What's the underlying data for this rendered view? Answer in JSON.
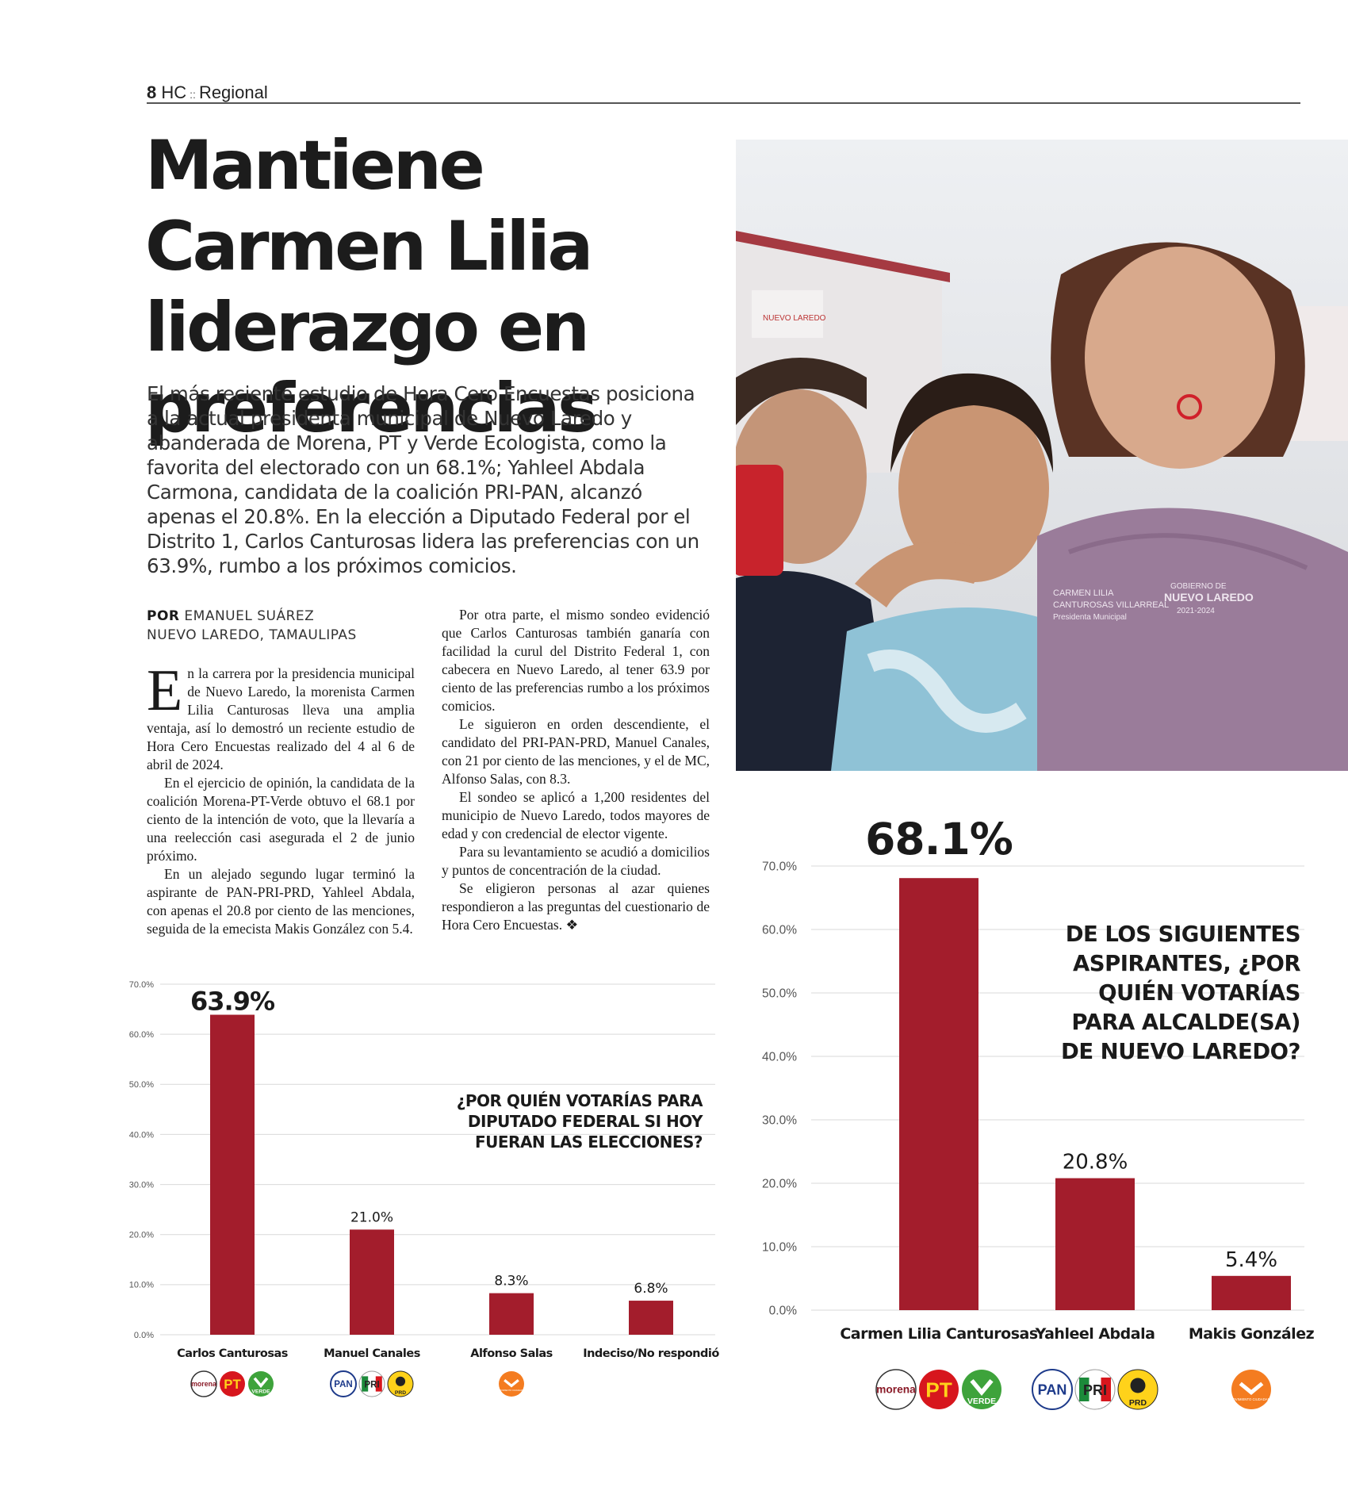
{
  "header": {
    "page_number": "8",
    "publication": "HC",
    "separator": "::",
    "section": "Regional"
  },
  "article": {
    "headline": "Mantiene Carmen Lilia liderazgo en preferencias",
    "deck": "El más reciente estudio de Hora Cero Encuestas posiciona a la actual presidenta municipal de Nuevo Laredo y abanderada de Morena, PT y Verde Ecologista, como la favorita del electorado con un 68.1%; Yahleel Abdala Carmona, candidata de la coalición PRI-PAN, alcanzó apenas el 20.8%. En la elección a Diputado Federal por el Distrito 1, Carlos Canturosas lidera las preferencias con un 63.9%, rumbo a los próximos comicios.",
    "byline_prefix": "POR",
    "author": "EMANUEL SUÁREZ",
    "location": "NUEVO LAREDO, TAMAULIPAS",
    "dropcap": "E",
    "paragraphs_col1": [
      "n la carrera por la presidencia municipal de Nuevo Laredo, la morenista Carmen Lilia Canturosas lleva una amplia ventaja, así lo demostró un reciente estudio de Hora Cero Encuestas realizado del 4 al 6 de abril de 2024.",
      "En el ejercicio de opinión, la candidata de la coalición Morena-PT-Verde obtuvo el 68.1 por ciento de la intención de voto, que la llevaría a una reelección casi asegurada el 2 de junio próximo.",
      "En un alejado segundo lugar terminó la aspirante de PAN-PRI-PRD, Yahleel Abdala, con apenas el 20.8 por ciento de las menciones, seguida de la emecista Makis González con 5.4."
    ],
    "paragraphs_col2": [
      "Por otra parte, el mismo sondeo evidenció que Carlos Canturosas también ganaría con facilidad la curul del Distrito Federal 1, con cabecera en Nuevo Laredo, al tener 63.9 por ciento de las preferencias rumbo a los próximos comicios.",
      "Le siguieron en orden descendiente, el candidato del PRI-PAN-PRD, Manuel Canales, con 21 por ciento de las menciones, y el de MC, Alfonso Salas, con 8.3.",
      "El sondeo se aplicó a 1,200 residentes del municipio de Nuevo Laredo, todos mayores de edad y con credencial de elector vigente.",
      "Para su levantamiento se acudió a domicilios y puntos de concentración de la ciudad.",
      "Se eligieron personas al azar quienes respondieron a las preguntas del cuestionario de Hora Cero Encuestas. ❖"
    ]
  },
  "photo": {
    "shirt_text_1": "CARMEN LILIA",
    "shirt_text_2": "CANTUROSAS VILLARREAL",
    "shirt_text_3": "Presidenta Municipal",
    "shirt_logo_1": "GOBIERNO DE",
    "shirt_logo_2": "NUEVO LAREDO",
    "shirt_logo_3": "2021-2024",
    "bg_sign": "NUEVO LAREDO"
  },
  "colors": {
    "bar": "#a31d2c",
    "grid": "#d9d9d9",
    "axis_text": "#555555"
  },
  "party_logos": {
    "morena": "morena",
    "pt": "PT",
    "verde": "VERDE",
    "pan": "PAN",
    "pri": "PRI",
    "prd": "PRD",
    "mc": "MOVIMIENTO CIUDADANO"
  },
  "chart_data": [
    {
      "type": "bar",
      "title": "¿POR QUIÉN VOTARÍAS PARA DIPUTADO FEDERAL SI HOY FUERAN LAS ELECCIONES?",
      "categories": [
        "Carlos Canturosas",
        "Manuel Canales",
        "Alfonso Salas",
        "Indeciso/No respondió"
      ],
      "values": [
        63.9,
        21.0,
        8.3,
        6.8
      ],
      "value_labels": [
        "63.9%",
        "21.0%",
        "8.3%",
        "6.8%"
      ],
      "ylim": [
        0,
        70
      ],
      "yticks": [
        "0.0%",
        "10.0%",
        "20.0%",
        "30.0%",
        "40.0%",
        "50.0%",
        "60.0%",
        "70.0%"
      ],
      "grid": true,
      "logos": [
        [
          "morena",
          "pt",
          "verde"
        ],
        [
          "pan",
          "pri",
          "prd"
        ],
        [
          "mc"
        ],
        []
      ]
    },
    {
      "type": "bar",
      "title": "DE LOS SIGUIENTES ASPIRANTES, ¿POR QUIÉN VOTARÍAS PARA ALCALDE(SA) DE NUEVO LAREDO?",
      "categories": [
        "Carmen Lilia Canturosas",
        "Yahleel Abdala",
        "Makis González"
      ],
      "values": [
        68.1,
        20.8,
        5.4
      ],
      "value_labels": [
        "68.1%",
        "20.8%",
        "5.4%"
      ],
      "ylim": [
        0,
        70
      ],
      "yticks": [
        "0.0%",
        "10.0%",
        "20.0%",
        "30.0%",
        "40.0%",
        "50.0%",
        "60.0%",
        "70.0%"
      ],
      "grid": true,
      "logos": [
        [
          "morena",
          "pt",
          "verde"
        ],
        [
          "pan",
          "pri",
          "prd"
        ],
        [
          "mc"
        ]
      ]
    }
  ]
}
